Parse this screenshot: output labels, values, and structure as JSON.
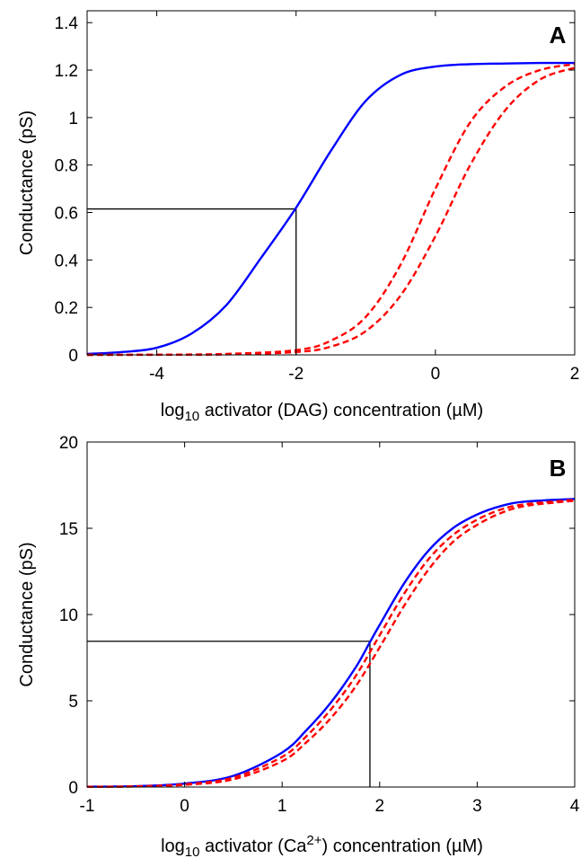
{
  "chart_data": [
    {
      "type": "line",
      "panel_label": "A",
      "xlabel": {
        "prefix": "log",
        "sub": "10",
        "rest": " activator (DAG) concentration (µM)",
        "sup": "",
        "tail": ""
      },
      "ylabel": "Conductance (pS)",
      "xlim": [
        -5,
        2
      ],
      "ylim": [
        0,
        1.45
      ],
      "xticks": [
        -4,
        -2,
        0,
        2
      ],
      "yticks": [
        0,
        0.2,
        0.4,
        0.6,
        0.8,
        1,
        1.2,
        1.4
      ],
      "x_tick_labels": [
        "-4",
        "-2",
        "0",
        "2"
      ],
      "y_tick_labels": [
        "0",
        "0.2",
        "0.4",
        "0.6",
        "0.8",
        "1",
        "1.2",
        "1.4"
      ],
      "grid": false,
      "series": [
        {
          "style": "solid",
          "color": "#0000ff",
          "x": [
            -5,
            -4.5,
            -4,
            -3.5,
            -3,
            -2.5,
            -2,
            -1.5,
            -1,
            -0.5,
            0,
            0.5,
            1,
            1.5,
            2
          ],
          "y": [
            0.004,
            0.012,
            0.03,
            0.09,
            0.21,
            0.41,
            0.62,
            0.86,
            1.07,
            1.18,
            1.215,
            1.225,
            1.228,
            1.23,
            1.23
          ]
        },
        {
          "style": "dashed",
          "color": "#ff0000",
          "x": [
            -5,
            -4,
            -3,
            -2,
            -1.5,
            -1,
            -0.5,
            0,
            0.5,
            1,
            1.5,
            2
          ],
          "y": [
            0.0,
            0.001,
            0.004,
            0.02,
            0.06,
            0.16,
            0.38,
            0.7,
            0.98,
            1.13,
            1.2,
            1.225
          ]
        },
        {
          "style": "dashed",
          "color": "#ff0000",
          "x": [
            -5,
            -4,
            -3,
            -2,
            -1.5,
            -1,
            -0.5,
            0,
            0.5,
            1,
            1.5,
            2
          ],
          "y": [
            0.0,
            0.0005,
            0.002,
            0.012,
            0.035,
            0.1,
            0.25,
            0.5,
            0.8,
            1.03,
            1.16,
            1.21
          ]
        }
      ],
      "reference_lines": {
        "x": -2,
        "y": 0.615,
        "color": "#000000"
      }
    },
    {
      "type": "line",
      "panel_label": "B",
      "xlabel": {
        "prefix": "log",
        "sub": "10",
        "rest": " activator (Ca",
        "sup": "2+",
        "tail": ") concentration (µM)"
      },
      "ylabel": "Conductance (pS)",
      "xlim": [
        -1,
        4
      ],
      "ylim": [
        0,
        20
      ],
      "xticks": [
        -1,
        0,
        1,
        2,
        3,
        4
      ],
      "yticks": [
        0,
        5,
        10,
        15,
        20
      ],
      "x_tick_labels": [
        "-1",
        "0",
        "1",
        "2",
        "3",
        "4"
      ],
      "y_tick_labels": [
        "0",
        "5",
        "10",
        "15",
        "20"
      ],
      "grid": false,
      "series": [
        {
          "style": "solid",
          "color": "#0000ff",
          "x": [
            -1,
            -0.5,
            0,
            0.5,
            1,
            1.25,
            1.5,
            1.75,
            1.9,
            2,
            2.25,
            2.5,
            2.75,
            3,
            3.25,
            3.5,
            4
          ],
          "y": [
            0.02,
            0.05,
            0.2,
            0.65,
            2.0,
            3.3,
            4.9,
            6.9,
            8.4,
            9.4,
            11.8,
            13.7,
            15.0,
            15.8,
            16.3,
            16.55,
            16.7
          ]
        },
        {
          "style": "dashed",
          "color": "#ff0000",
          "x": [
            -1,
            -0.5,
            0,
            0.5,
            1,
            1.25,
            1.5,
            1.75,
            2,
            2.25,
            2.5,
            2.75,
            3,
            3.25,
            3.5,
            4
          ],
          "y": [
            0.01,
            0.04,
            0.16,
            0.55,
            1.75,
            2.95,
            4.5,
            6.4,
            8.8,
            11.2,
            13.2,
            14.6,
            15.5,
            16.1,
            16.4,
            16.65
          ]
        },
        {
          "style": "dashed",
          "color": "#ff0000",
          "x": [
            -1,
            -0.5,
            0,
            0.5,
            1,
            1.25,
            1.5,
            1.75,
            2,
            2.25,
            2.5,
            2.75,
            3,
            3.25,
            3.5,
            4
          ],
          "y": [
            0.01,
            0.03,
            0.13,
            0.45,
            1.5,
            2.6,
            4.0,
            5.8,
            8.1,
            10.5,
            12.6,
            14.2,
            15.2,
            15.9,
            16.3,
            16.6
          ]
        }
      ],
      "reference_lines": {
        "x": 1.9,
        "y": 8.45,
        "color": "#000000"
      }
    }
  ]
}
